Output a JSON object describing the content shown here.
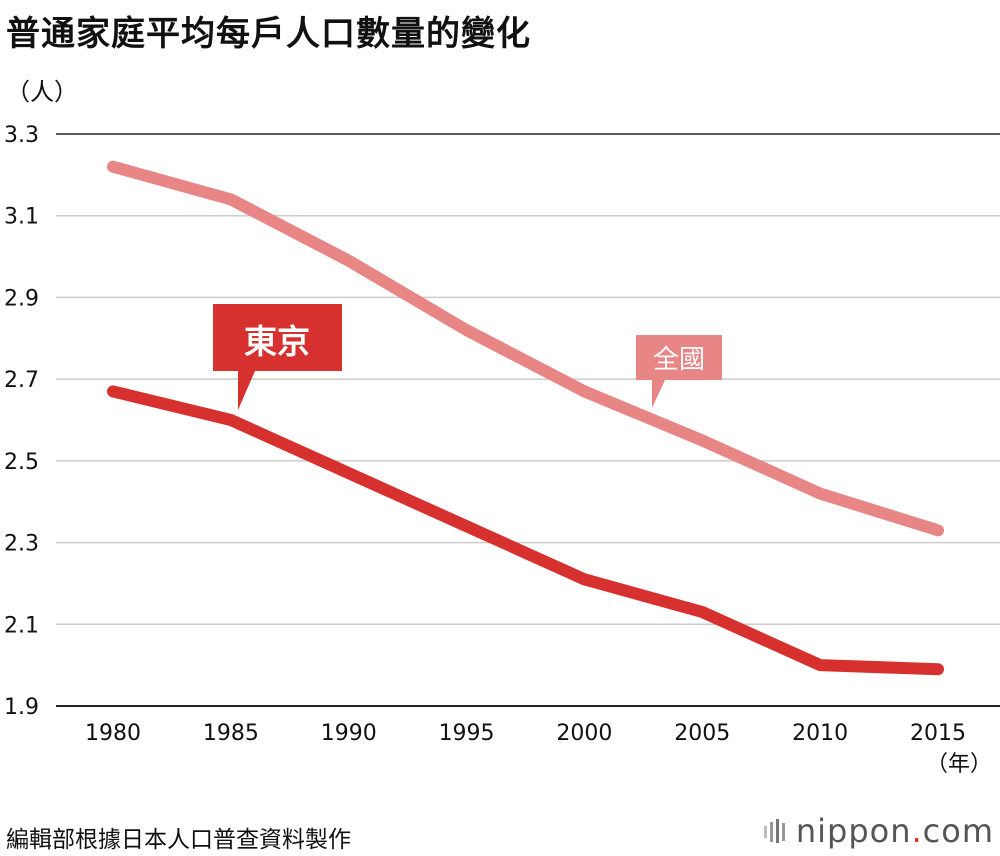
{
  "title": "普通家庭平均每戶人口數量的變化",
  "y_unit": "（人）",
  "x_unit": "（年）",
  "source": "編輯部根據日本人口普查資料製作",
  "logo": {
    "text": "nippon",
    "dot": ".",
    "suffix": "com"
  },
  "colors": {
    "tokyo": "#d7312f",
    "national": "#e88585",
    "grid": "#cccccc",
    "axis": "#222222"
  },
  "chart_data": {
    "type": "line",
    "x": [
      1980,
      1985,
      1990,
      1995,
      2000,
      2005,
      2010,
      2015
    ],
    "series": [
      {
        "name": "全國",
        "values": [
          3.22,
          3.14,
          2.99,
          2.82,
          2.67,
          2.55,
          2.42,
          2.33
        ]
      },
      {
        "name": "東京",
        "values": [
          2.67,
          2.6,
          2.47,
          2.34,
          2.21,
          2.13,
          2.0,
          1.99
        ]
      }
    ],
    "ylim": [
      1.9,
      3.3
    ],
    "yticks": [
      "1.9",
      "2.1",
      "2.3",
      "2.5",
      "2.7",
      "2.9",
      "3.1",
      "3.3"
    ],
    "xticks": [
      "1980",
      "1985",
      "1990",
      "1995",
      "2000",
      "2005",
      "2010",
      "2015"
    ],
    "grid": true,
    "legend": "inline-callouts"
  }
}
